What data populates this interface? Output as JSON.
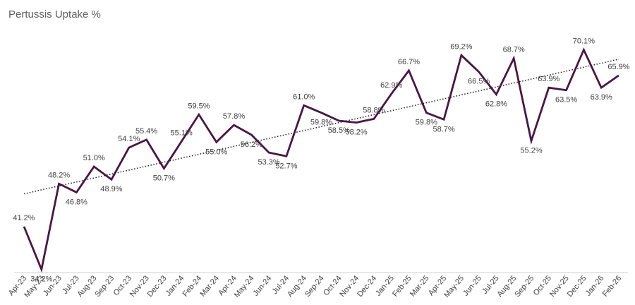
{
  "chart_data": {
    "type": "line",
    "title": "Pertussis Uptake %",
    "xlabel": "",
    "ylabel": "",
    "categories": [
      "Apr-23",
      "May-23",
      "Jun-23",
      "Jul-23",
      "Aug-23",
      "Sep-23",
      "Oct-23",
      "Nov-23",
      "Dec-23",
      "Jan-24",
      "Feb-24",
      "Mar-24",
      "Apr-24",
      "May-24",
      "Jun-24",
      "Jul-24",
      "Aug-24",
      "Sep-24",
      "Oct-24",
      "Nov-24",
      "Dec-24",
      "Jan-25",
      "Feb-25",
      "Mar-25",
      "Apr-25",
      "May-25",
      "Jun-25",
      "Jul-25",
      "Aug-25",
      "Sep-25",
      "Oct-25",
      "Nov-25",
      "Dec-25",
      "Jan-26",
      "Feb-26"
    ],
    "series": [
      {
        "name": "",
        "values": [
          41.2,
          34.2,
          48.2,
          46.8,
          51.0,
          48.9,
          54.1,
          55.4,
          50.7,
          55.1,
          59.5,
          55.0,
          57.8,
          56.2,
          53.3,
          52.7,
          61.0,
          59.8,
          58.5,
          58.2,
          58.8,
          62.9,
          66.7,
          59.8,
          58.7,
          69.2,
          66.5,
          62.8,
          68.7,
          55.2,
          63.9,
          63.5,
          70.1,
          63.9,
          65.9
        ],
        "labels": [
          "41.2%",
          "34.2%",
          "48.2%",
          "46.8%",
          "51.0%",
          "48.9%",
          "54.1%",
          "55.4%",
          "50.7%",
          "55.1%",
          "59.5%",
          "55.0%",
          "57.8%",
          "56.2%",
          "53.3%",
          "52.7%",
          "61.0%",
          "59.8%",
          "58.5%",
          "58.2%",
          "58.8%",
          "62.9%",
          "66.7%",
          "59.8%",
          "58.7%",
          "69.2%",
          "66.5%",
          "62.8%",
          "68.7%",
          "55.2%",
          "63.9%",
          "63.5%",
          "70.1%",
          "63.9%",
          "65.9%"
        ],
        "color": "#4a1545"
      }
    ],
    "trendline": {
      "type": "linear",
      "style": "dotted",
      "color": "#1a1a1a"
    },
    "ylim": [
      30,
      75
    ],
    "grid": false,
    "legend": "none"
  }
}
